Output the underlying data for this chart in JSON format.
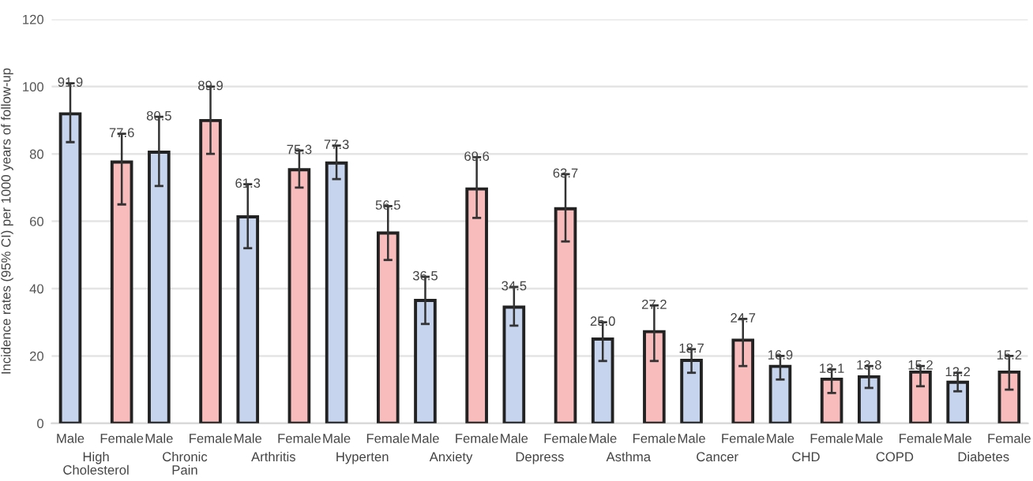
{
  "chart_data": {
    "type": "bar",
    "categories": [
      "High\nCholesterol",
      "Chronic\nPain",
      "Arthritis",
      "Hyperten",
      "Anxiety",
      "Depress",
      "Asthma",
      "Cancer",
      "CHD",
      "COPD",
      "Diabetes"
    ],
    "series": [
      {
        "name": "Male",
        "color": "#c6d4ee",
        "values": [
          91.9,
          80.5,
          61.3,
          77.3,
          36.5,
          34.5,
          25.0,
          18.7,
          16.9,
          13.8,
          12.2
        ],
        "value_labels": [
          "91.9",
          "80.5",
          "61.3",
          "77.3",
          "36.5",
          "34.5",
          "25.0",
          "18.7",
          "16.9",
          "13.8",
          "12.2"
        ],
        "errors": [
          [
            83.5,
            101
          ],
          [
            70.5,
            91
          ],
          [
            52,
            71
          ],
          [
            72.5,
            82.5
          ],
          [
            29.5,
            43.5
          ],
          [
            29,
            40.5
          ],
          [
            18.5,
            30
          ],
          [
            15,
            22
          ],
          [
            13,
            20
          ],
          [
            10.5,
            17
          ],
          [
            9.5,
            15
          ]
        ]
      },
      {
        "name": "Female",
        "color": "#f8bcbc",
        "values": [
          77.6,
          89.9,
          75.3,
          56.5,
          69.6,
          63.7,
          27.2,
          24.7,
          13.1,
          15.2,
          15.2
        ],
        "value_labels": [
          "77.6",
          "89.9",
          "75.3",
          "56.5",
          "69.6",
          "63.7",
          "27.2",
          "24.7",
          "13.1",
          "15.2",
          "15.2"
        ],
        "errors": [
          [
            65,
            86
          ],
          [
            80,
            100
          ],
          [
            70,
            81
          ],
          [
            48.5,
            64.5
          ],
          [
            61,
            79
          ],
          [
            54,
            74
          ],
          [
            18.5,
            35
          ],
          [
            17,
            31
          ],
          [
            9,
            16
          ],
          [
            11,
            17
          ],
          [
            10,
            20
          ]
        ]
      }
    ],
    "ylabel": "Incidence rates (95% CI) per 1000 years of follow-up",
    "ylim": [
      0,
      120
    ],
    "yticks": [
      0,
      20,
      40,
      60,
      80,
      100,
      120
    ],
    "grid": "y",
    "legend": false
  }
}
